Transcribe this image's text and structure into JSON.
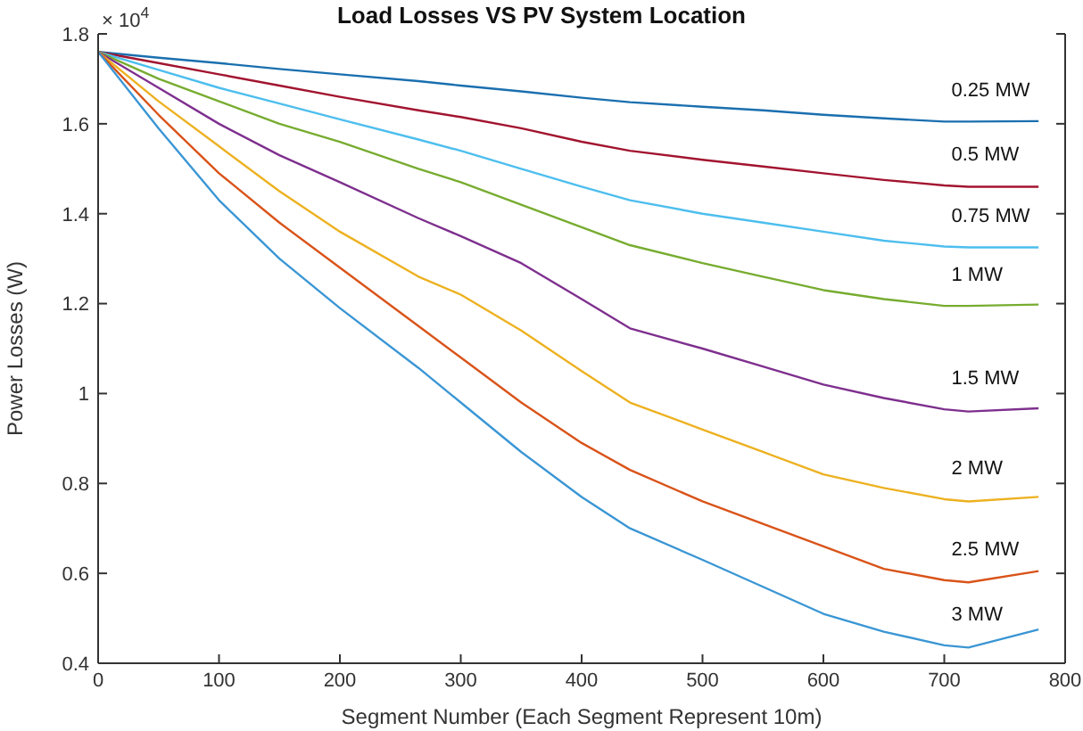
{
  "chart_data": {
    "type": "line",
    "title": "Load Losses VS PV System Location",
    "xlabel": "Segment Number (Each Segment Represent 10m)",
    "ylabel": "Power Losses (W)",
    "annotations": [
      "× 10$^{4}$"
    ],
    "x": [
      0,
      50,
      100,
      150,
      200,
      265,
      300,
      350,
      400,
      440,
      500,
      550,
      600,
      650,
      700,
      720,
      778
    ],
    "series": [
      {
        "name": "0.25 MW",
        "color": "#1a6faf",
        "values": [
          1.76,
          1.747,
          1.735,
          1.722,
          1.71,
          1.695,
          1.685,
          1.672,
          1.658,
          1.648,
          1.638,
          1.63,
          1.62,
          1.612,
          1.605,
          1.605,
          1.606
        ]
      },
      {
        "name": "0.5 MW",
        "color": "#a2142f",
        "values": [
          1.76,
          1.735,
          1.71,
          1.685,
          1.66,
          1.63,
          1.615,
          1.59,
          1.56,
          1.54,
          1.52,
          1.505,
          1.49,
          1.475,
          1.463,
          1.46,
          1.46
        ]
      },
      {
        "name": "0.75 MW",
        "color": "#4dbeee",
        "values": [
          1.76,
          1.72,
          1.68,
          1.645,
          1.61,
          1.565,
          1.54,
          1.5,
          1.46,
          1.43,
          1.4,
          1.38,
          1.36,
          1.34,
          1.327,
          1.325,
          1.325
        ]
      },
      {
        "name": "1 MW",
        "color": "#77ac30",
        "values": [
          1.76,
          1.7,
          1.65,
          1.6,
          1.56,
          1.5,
          1.47,
          1.42,
          1.37,
          1.33,
          1.29,
          1.26,
          1.23,
          1.21,
          1.195,
          1.195,
          1.198
        ]
      },
      {
        "name": "1.5 MW",
        "color": "#7e2f8e",
        "values": [
          1.76,
          1.68,
          1.6,
          1.53,
          1.47,
          1.39,
          1.35,
          1.29,
          1.21,
          1.145,
          1.1,
          1.06,
          1.02,
          0.99,
          0.965,
          0.96,
          0.967
        ]
      },
      {
        "name": "2 MW",
        "color": "#edb120",
        "values": [
          1.76,
          1.65,
          1.55,
          1.45,
          1.36,
          1.26,
          1.22,
          1.14,
          1.05,
          0.98,
          0.92,
          0.87,
          0.82,
          0.79,
          0.765,
          0.76,
          0.77
        ]
      },
      {
        "name": "2.5 MW",
        "color": "#d95319",
        "values": [
          1.76,
          1.62,
          1.49,
          1.38,
          1.28,
          1.15,
          1.08,
          0.98,
          0.89,
          0.83,
          0.76,
          0.71,
          0.66,
          0.61,
          0.585,
          0.58,
          0.605
        ]
      },
      {
        "name": "3 MW",
        "color": "#3a96d4",
        "values": [
          1.76,
          1.59,
          1.43,
          1.3,
          1.19,
          1.057,
          0.98,
          0.87,
          0.77,
          0.7,
          0.63,
          0.57,
          0.51,
          0.47,
          0.44,
          0.435,
          0.475
        ]
      }
    ],
    "xlim": [
      0,
      800
    ],
    "xticks": [
      0,
      100,
      200,
      300,
      400,
      500,
      600,
      700,
      800
    ],
    "ylim": [
      0.4,
      1.8
    ],
    "yticks": [
      0.4,
      0.6,
      0.8,
      1,
      1.2,
      1.4,
      1.6,
      1.8
    ],
    "grid": false,
    "legend": false,
    "marker": "none",
    "line_style": "solid"
  }
}
